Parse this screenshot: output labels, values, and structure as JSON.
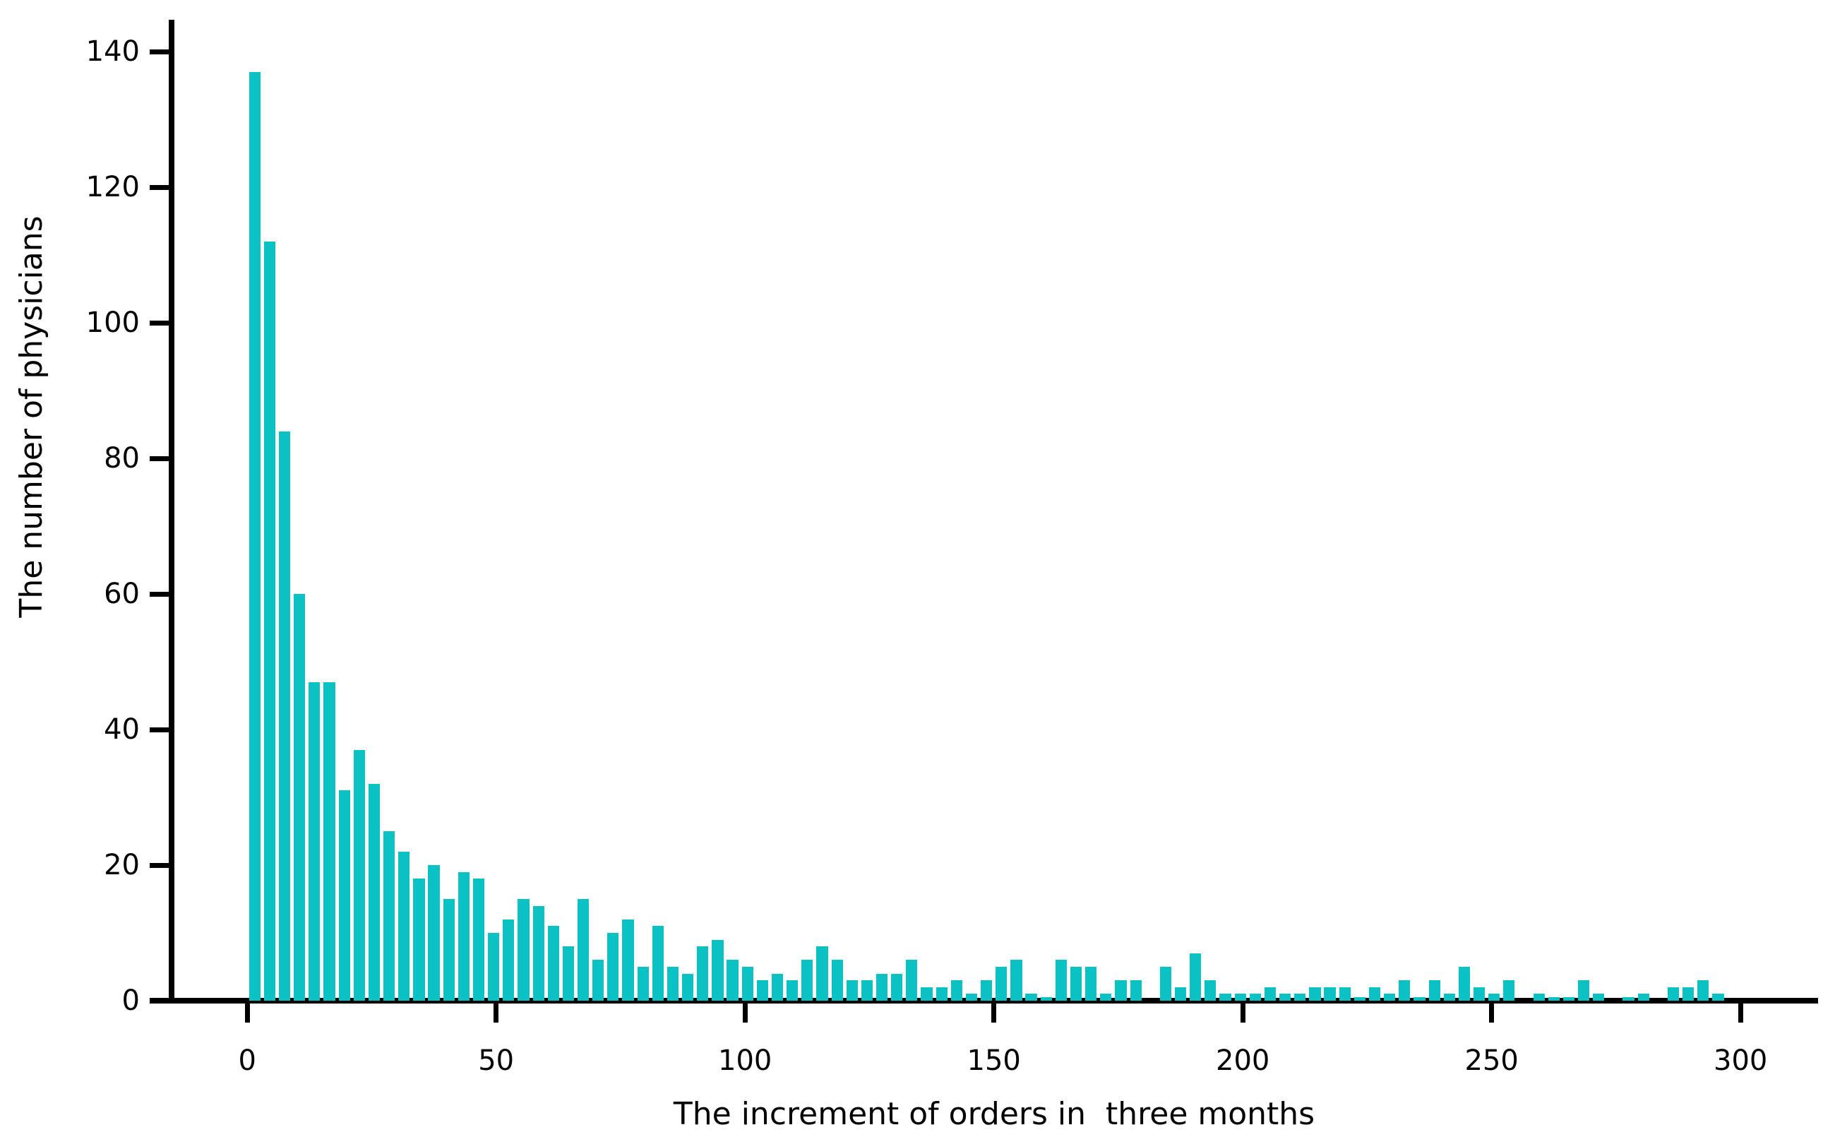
{
  "chart_data": {
    "type": "bar",
    "title": "",
    "xlabel": "The increment of orders in  three months",
    "ylabel": "The number of physicians",
    "bar_color": "#0ac2c4",
    "axis_color": "#000000",
    "background_color": "#ffffff",
    "grid": false,
    "legend": null,
    "bin_width": 3,
    "bar_draw_width": 2.3,
    "xlim": [
      -19.5,
      315.5
    ],
    "ylim": [
      0,
      145
    ],
    "x_ticks": [
      0,
      50,
      100,
      150,
      200,
      250,
      300
    ],
    "y_ticks": [
      0,
      20,
      40,
      60,
      80,
      100,
      120,
      140
    ],
    "x_centers": [
      1.5,
      4.5,
      7.5,
      10.5,
      13.5,
      16.5,
      19.5,
      22.5,
      25.5,
      28.5,
      31.5,
      34.5,
      37.5,
      40.5,
      43.5,
      46.5,
      49.5,
      52.5,
      55.5,
      58.5,
      61.5,
      64.5,
      67.5,
      70.5,
      73.5,
      76.5,
      79.5,
      82.5,
      85.5,
      88.5,
      91.5,
      94.5,
      97.5,
      100.5,
      103.5,
      106.5,
      109.5,
      112.5,
      115.5,
      118.5,
      121.5,
      124.5,
      127.5,
      130.5,
      133.5,
      136.5,
      139.5,
      142.5,
      145.5,
      148.5,
      151.5,
      154.5,
      157.5,
      160.5,
      163.5,
      166.5,
      169.5,
      172.5,
      175.5,
      178.5,
      181.5,
      184.5,
      187.5,
      190.5,
      193.5,
      196.5,
      199.5,
      202.5,
      205.5,
      208.5,
      211.5,
      214.5,
      217.5,
      220.5,
      223.5,
      226.5,
      229.5,
      232.5,
      235.5,
      238.5,
      241.5,
      244.5,
      247.5,
      250.5,
      253.5,
      256.5,
      259.5,
      262.5,
      265.5,
      268.5,
      271.5,
      274.5,
      277.5,
      280.5,
      283.5,
      286.5,
      289.5,
      292.5,
      295.5
    ],
    "values": [
      137,
      112,
      84,
      60,
      47,
      47,
      31,
      37,
      32,
      25,
      22,
      18,
      20,
      15,
      19,
      18,
      10,
      12,
      15,
      14,
      11,
      8,
      15,
      6,
      10,
      12,
      5,
      11,
      5,
      4,
      8,
      9,
      6,
      5,
      3,
      4,
      3,
      6,
      8,
      6,
      3,
      3,
      4,
      4,
      6,
      2,
      2,
      3,
      1,
      3,
      5,
      6,
      1,
      0.5,
      6,
      5,
      5,
      1,
      3,
      3,
      0,
      5,
      2,
      7,
      3,
      1,
      1,
      1,
      2,
      1,
      1,
      2,
      2,
      2,
      0.5,
      2,
      1,
      3,
      0.5,
      3,
      1,
      5,
      2,
      1,
      3,
      0,
      1,
      0.5,
      0.5,
      3,
      1,
      0,
      0.5,
      1,
      0,
      2,
      2,
      3,
      1
    ]
  }
}
